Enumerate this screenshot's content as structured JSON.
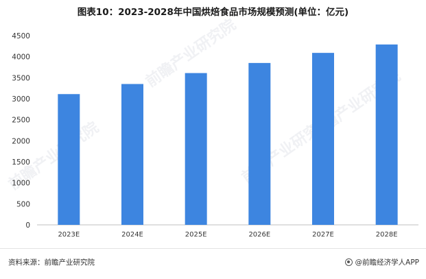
{
  "title": "图表10：2023-2028年中国烘焙食品市场规模预测(单位：亿元)",
  "watermark": "前瞻产业研究院",
  "footer": {
    "source": "资料来源：前瞻产业研究院",
    "brand": "@前瞻经济学人APP"
  },
  "chart_data": {
    "type": "bar",
    "categories": [
      "2023E",
      "2024E",
      "2025E",
      "2026E",
      "2027E",
      "2028E"
    ],
    "values": [
      3110,
      3350,
      3610,
      3850,
      4090,
      4290
    ],
    "ylim": [
      0,
      4500
    ],
    "yticks": [
      0,
      500,
      1000,
      1500,
      2000,
      2500,
      3000,
      3500,
      4000,
      4500
    ],
    "grid": false,
    "bar_color": "#3d85e0"
  }
}
